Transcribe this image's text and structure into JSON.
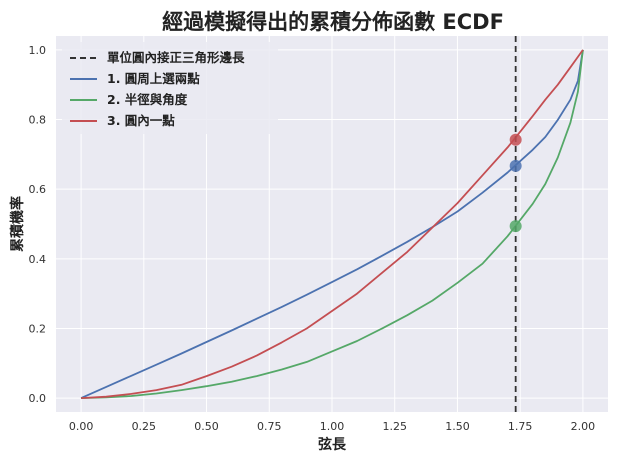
{
  "chart_data": {
    "type": "line",
    "title": "經過模擬得出的累積分佈函數 ECDF",
    "xlabel": "弦長",
    "ylabel": "累積機率",
    "xlim": [
      -0.1,
      2.1
    ],
    "ylim": [
      -0.04,
      1.04
    ],
    "xticks": [
      0.0,
      0.25,
      0.5,
      0.75,
      1.0,
      1.25,
      1.5,
      1.75,
      2.0
    ],
    "xtick_labels": [
      "0.00",
      "0.25",
      "0.50",
      "0.75",
      "1.00",
      "1.25",
      "1.50",
      "1.75",
      "2.00"
    ],
    "yticks": [
      0.0,
      0.2,
      0.4,
      0.6,
      0.8,
      1.0
    ],
    "ytick_labels": [
      "0.0",
      "0.2",
      "0.4",
      "0.6",
      "0.8",
      "1.0"
    ],
    "grid": true,
    "legend_position": "top-left",
    "vline": {
      "x": 1.732,
      "name": "單位圓內接正三角形邊長",
      "color": "#333333",
      "style": "dashed"
    },
    "series": [
      {
        "name": "1. 圓周上選兩點",
        "color": "#4c72b0",
        "x": [
          0.0,
          0.1,
          0.2,
          0.3,
          0.4,
          0.5,
          0.6,
          0.7,
          0.8,
          0.9,
          1.0,
          1.1,
          1.2,
          1.3,
          1.4,
          1.5,
          1.6,
          1.7,
          1.8,
          1.85,
          1.9,
          1.95,
          1.98,
          2.0
        ],
        "y": [
          0.0,
          0.032,
          0.064,
          0.096,
          0.128,
          0.161,
          0.194,
          0.228,
          0.262,
          0.297,
          0.333,
          0.37,
          0.409,
          0.449,
          0.491,
          0.536,
          0.59,
          0.648,
          0.713,
          0.75,
          0.799,
          0.857,
          0.911,
          1.0
        ],
        "marker": {
          "x": 1.732,
          "y": 0.667
        }
      },
      {
        "name": "2. 半徑與角度",
        "color": "#55a868",
        "x": [
          0.0,
          0.1,
          0.2,
          0.3,
          0.4,
          0.5,
          0.6,
          0.7,
          0.8,
          0.9,
          1.0,
          1.1,
          1.2,
          1.3,
          1.4,
          1.5,
          1.6,
          1.7,
          1.8,
          1.85,
          1.9,
          1.95,
          1.98,
          2.0
        ],
        "y": [
          0.0,
          0.002,
          0.006,
          0.013,
          0.023,
          0.034,
          0.047,
          0.063,
          0.082,
          0.104,
          0.134,
          0.164,
          0.2,
          0.238,
          0.28,
          0.331,
          0.386,
          0.465,
          0.558,
          0.615,
          0.691,
          0.791,
          0.88,
          1.0
        ],
        "marker": {
          "x": 1.732,
          "y": 0.494
        }
      },
      {
        "name": "3. 圓內一點",
        "color": "#c44e52",
        "x": [
          0.0,
          0.1,
          0.2,
          0.3,
          0.4,
          0.5,
          0.6,
          0.7,
          0.8,
          0.9,
          1.0,
          1.1,
          1.2,
          1.3,
          1.4,
          1.5,
          1.6,
          1.7,
          1.8,
          1.85,
          1.9,
          1.95,
          1.98,
          2.0
        ],
        "y": [
          0.0,
          0.004,
          0.012,
          0.023,
          0.038,
          0.063,
          0.09,
          0.122,
          0.16,
          0.2,
          0.25,
          0.3,
          0.36,
          0.42,
          0.49,
          0.56,
          0.64,
          0.72,
          0.81,
          0.857,
          0.9,
          0.95,
          0.98,
          1.0
        ],
        "marker": {
          "x": 1.732,
          "y": 0.742
        }
      }
    ]
  }
}
